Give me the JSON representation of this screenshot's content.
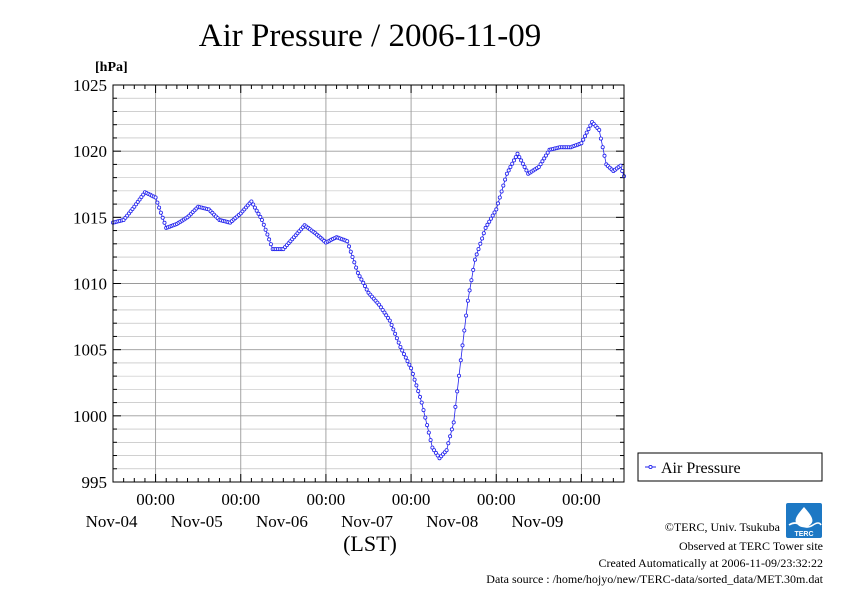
{
  "chart_data": {
    "type": "line",
    "title": "Air Pressure / 2006-11-09",
    "ylabel": "[hPa]",
    "xlabel": "(LST)",
    "ylim": [
      995,
      1025
    ],
    "yticks": [
      "995",
      "1000",
      "1005",
      "1010",
      "1015",
      "1020",
      "1025"
    ],
    "xlim": [
      "2006-11-03 12:00",
      "2006-11-09 12:00"
    ],
    "xticks": [
      {
        "x": "2006-11-04 00:00",
        "time": "00:00",
        "date": "Nov-04"
      },
      {
        "x": "2006-11-05 00:00",
        "time": "00:00",
        "date": "Nov-05"
      },
      {
        "x": "2006-11-06 00:00",
        "time": "00:00",
        "date": "Nov-06"
      },
      {
        "x": "2006-11-07 00:00",
        "time": "00:00",
        "date": "Nov-07"
      },
      {
        "x": "2006-11-08 00:00",
        "time": "00:00",
        "date": "Nov-08"
      },
      {
        "x": "2006-11-09 00:00",
        "time": "00:00",
        "date": "Nov-09"
      }
    ],
    "grid": true,
    "legend_position": "right",
    "series": [
      {
        "name": "Air Pressure",
        "color": "#2222ee",
        "points": [
          [
            "2006-11-03 12:00",
            1014.6
          ],
          [
            "2006-11-03 15:00",
            1014.8
          ],
          [
            "2006-11-03 18:00",
            1015.8
          ],
          [
            "2006-11-03 21:00",
            1016.9
          ],
          [
            "2006-11-04 00:00",
            1016.5
          ],
          [
            "2006-11-04 03:00",
            1014.2
          ],
          [
            "2006-11-04 06:00",
            1014.5
          ],
          [
            "2006-11-04 09:00",
            1015.0
          ],
          [
            "2006-11-04 12:00",
            1015.8
          ],
          [
            "2006-11-04 15:00",
            1015.6
          ],
          [
            "2006-11-04 18:00",
            1014.8
          ],
          [
            "2006-11-04 21:00",
            1014.6
          ],
          [
            "2006-11-05 00:00",
            1015.3
          ],
          [
            "2006-11-05 03:00",
            1016.2
          ],
          [
            "2006-11-05 06:00",
            1014.8
          ],
          [
            "2006-11-05 09:00",
            1012.6
          ],
          [
            "2006-11-05 12:00",
            1012.6
          ],
          [
            "2006-11-05 15:00",
            1013.5
          ],
          [
            "2006-11-05 18:00",
            1014.4
          ],
          [
            "2006-11-05 21:00",
            1013.8
          ],
          [
            "2006-11-06 00:00",
            1013.1
          ],
          [
            "2006-11-06 03:00",
            1013.5
          ],
          [
            "2006-11-06 06:00",
            1013.2
          ],
          [
            "2006-11-06 09:00",
            1010.8
          ],
          [
            "2006-11-06 12:00",
            1009.3
          ],
          [
            "2006-11-06 15:00",
            1008.4
          ],
          [
            "2006-11-06 18:00",
            1007.2
          ],
          [
            "2006-11-06 21:00",
            1005.2
          ],
          [
            "2006-11-07 00:00",
            1003.6
          ],
          [
            "2006-11-07 03:00",
            1001.0
          ],
          [
            "2006-11-07 06:00",
            997.6
          ],
          [
            "2006-11-07 08:00",
            996.8
          ],
          [
            "2006-11-07 10:00",
            997.4
          ],
          [
            "2006-11-07 12:00",
            999.5
          ],
          [
            "2006-11-07 14:00",
            1004.2
          ],
          [
            "2006-11-07 16:00",
            1008.7
          ],
          [
            "2006-11-07 18:00",
            1011.8
          ],
          [
            "2006-11-07 21:00",
            1014.2
          ],
          [
            "2006-11-08 00:00",
            1015.6
          ],
          [
            "2006-11-08 03:00",
            1018.3
          ],
          [
            "2006-11-08 06:00",
            1019.8
          ],
          [
            "2006-11-08 09:00",
            1018.3
          ],
          [
            "2006-11-08 12:00",
            1018.8
          ],
          [
            "2006-11-08 15:00",
            1020.1
          ],
          [
            "2006-11-08 18:00",
            1020.3
          ],
          [
            "2006-11-08 21:00",
            1020.3
          ],
          [
            "2006-11-09 00:00",
            1020.6
          ],
          [
            "2006-11-09 03:00",
            1022.2
          ],
          [
            "2006-11-09 05:00",
            1021.6
          ],
          [
            "2006-11-09 07:00",
            1019.0
          ],
          [
            "2006-11-09 09:00",
            1018.5
          ],
          [
            "2006-11-09 11:00",
            1018.9
          ],
          [
            "2006-11-09 12:00",
            1018.1
          ]
        ]
      }
    ]
  },
  "footer": {
    "copyright": "©TERC, Univ. Tsukuba",
    "observed": "Observed at TERC Tower site",
    "created": "Created Automatically at 2006-11-09/23:32:22",
    "source": "Data source : /home/hojyo/new/TERC-data/sorted_data/MET.30m.dat",
    "logo_text": "TERC"
  }
}
